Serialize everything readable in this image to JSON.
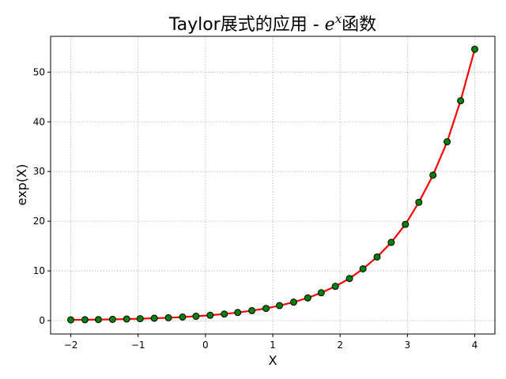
{
  "colors": {
    "line": "#ff0000",
    "marker_face": "#008000",
    "marker_edge": "#000000",
    "grid": "#b0b0b0"
  },
  "chart_data": {
    "type": "line",
    "title_main": "Taylor展式的应用 - ",
    "title_base": "e",
    "title_sup": "x",
    "title_tail": "函数",
    "xlabel": "X",
    "ylabel": "exp(X)",
    "xlim": [
      -2.3,
      4.3
    ],
    "ylim": [
      -2.7,
      57.2
    ],
    "xticks": [
      -2,
      -1,
      0,
      1,
      2,
      3,
      4
    ],
    "xtick_labels": [
      "−2",
      "−1",
      "0",
      "1",
      "2",
      "3",
      "4"
    ],
    "yticks": [
      0,
      10,
      20,
      30,
      40,
      50
    ],
    "ytick_labels": [
      "0",
      "10",
      "20",
      "30",
      "40",
      "50"
    ],
    "grid": true,
    "x": [
      -2.0,
      -1.79,
      -1.59,
      -1.38,
      -1.17,
      -0.97,
      -0.76,
      -0.55,
      -0.34,
      -0.14,
      0.07,
      0.28,
      0.48,
      0.69,
      0.9,
      1.1,
      1.31,
      1.52,
      1.72,
      1.93,
      2.14,
      2.34,
      2.55,
      2.76,
      2.97,
      3.17,
      3.38,
      3.59,
      3.79,
      4.0
    ],
    "series": [
      {
        "values": [
          0.14,
          0.17,
          0.2,
          0.25,
          0.31,
          0.38,
          0.47,
          0.57,
          0.71,
          0.87,
          1.07,
          1.32,
          1.62,
          2.0,
          2.45,
          3.01,
          3.71,
          4.56,
          5.6,
          6.89,
          8.47,
          10.41,
          12.8,
          15.74,
          19.36,
          23.8,
          29.26,
          35.98,
          44.24,
          54.6
        ]
      }
    ]
  }
}
